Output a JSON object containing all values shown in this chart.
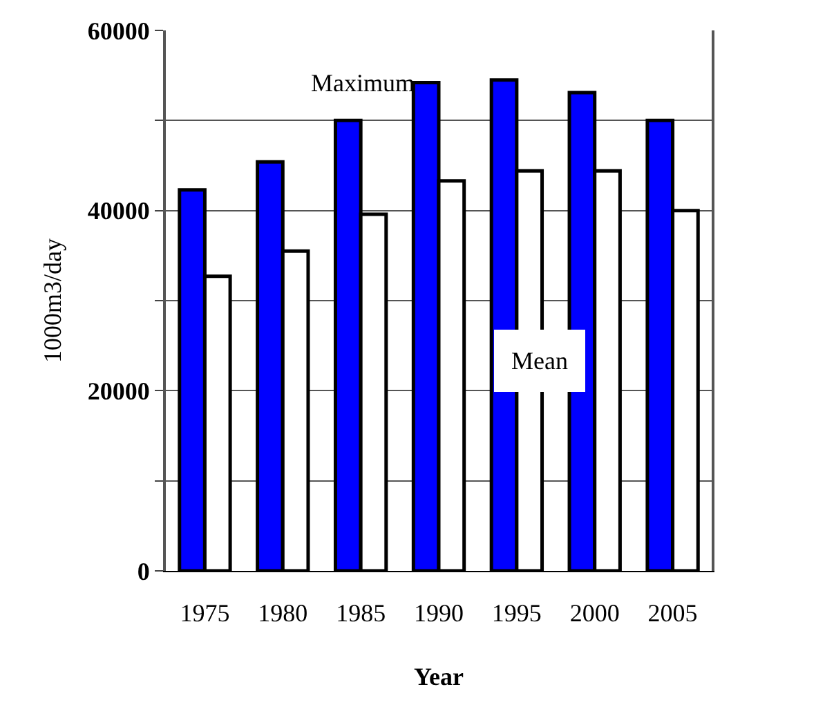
{
  "chart_data": {
    "type": "bar",
    "xlabel": "Year",
    "ylabel": "1000m3/day",
    "categories": [
      "1975",
      "1980",
      "1985",
      "1990",
      "1995",
      "2000",
      "2005"
    ],
    "series": [
      {
        "name": "Maximum",
        "color": "#0000ff",
        "values": [
          42300,
          45400,
          50000,
          54200,
          54500,
          53100,
          50000
        ]
      },
      {
        "name": "Mean",
        "color": "#ffffff",
        "values": [
          32700,
          35500,
          39600,
          43300,
          44400,
          44400,
          40000
        ]
      }
    ],
    "ylim": [
      0,
      60000
    ],
    "yticks": [
      0,
      {
        "value": 10000,
        "label": null
      },
      20000,
      {
        "value": 30000,
        "label": null
      },
      40000,
      {
        "value": 50000,
        "label": null
      },
      60000
    ],
    "grid": "y",
    "legend": false
  }
}
